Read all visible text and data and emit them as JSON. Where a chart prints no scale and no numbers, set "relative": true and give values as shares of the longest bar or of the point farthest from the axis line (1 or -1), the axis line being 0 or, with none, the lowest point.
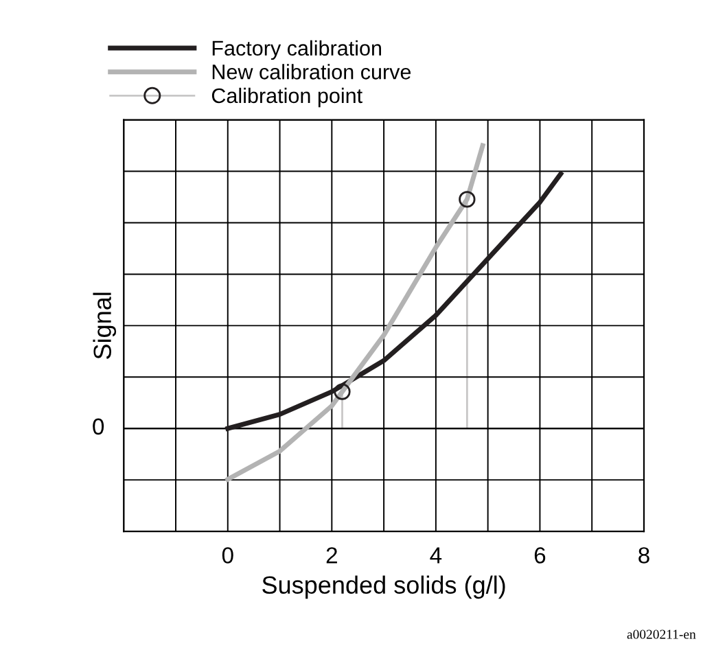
{
  "chart_data": {
    "type": "line",
    "relative": true,
    "xlabel": "Suspended solids (g/l)",
    "ylabel": "Signal",
    "xlim": [
      -2,
      8
    ],
    "xticks": [
      0,
      2,
      4,
      6,
      8
    ],
    "ref_lines": [
      {
        "axis": "y",
        "value": 0,
        "label": "0",
        "color": "#000000"
      }
    ],
    "grid": true,
    "legend": "top",
    "marker": "none",
    "line_style": "solid",
    "series": [
      {
        "name": "Factory calibration",
        "color": "#231f20",
        "x": [
          0,
          1,
          2,
          3,
          4,
          5,
          6,
          6.4
        ],
        "values": [
          0,
          0.05,
          0.13,
          0.24,
          0.4,
          0.6,
          0.8,
          0.9
        ]
      },
      {
        "name": "New calibration curve",
        "color": "#b3b3b3",
        "x": [
          0,
          1,
          2,
          2.2,
          3,
          4,
          4.6,
          4.9
        ],
        "values": [
          -0.18,
          -0.08,
          0.08,
          0.13,
          0.33,
          0.64,
          0.81,
          1.0
        ]
      },
      {
        "name": "Calibration point",
        "type": "lollipop",
        "marker": "circle",
        "color": "#231f20",
        "x": [
          2.2,
          4.6
        ],
        "values": [
          0.13,
          0.81
        ]
      }
    ],
    "annotations": [
      "a0020211-en"
    ]
  }
}
